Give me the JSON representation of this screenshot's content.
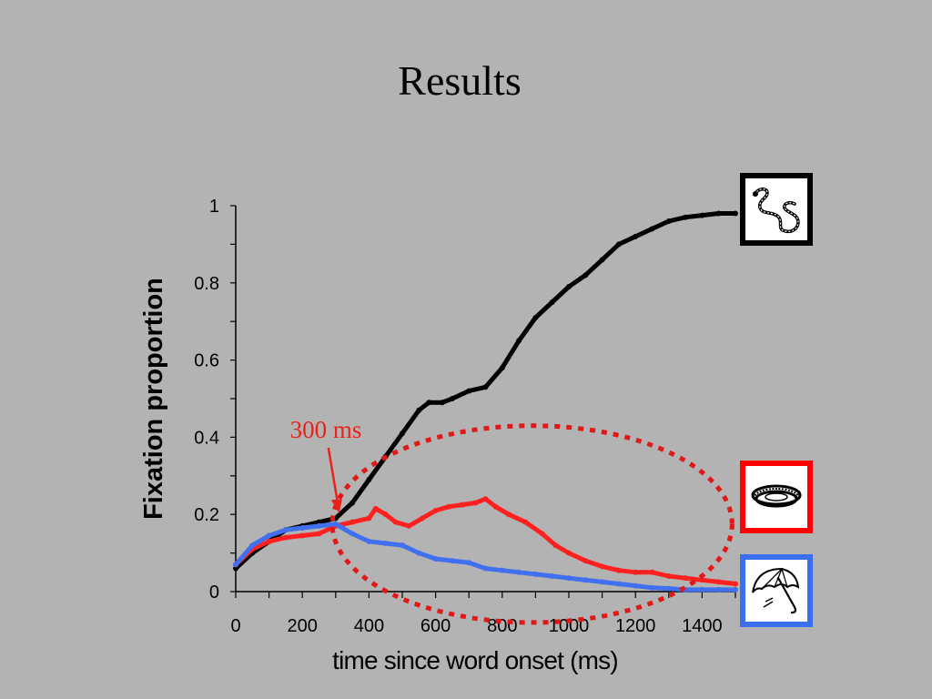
{
  "slide": {
    "title": "Results"
  },
  "colors": {
    "background": "#b3b3b3",
    "target": "#000000",
    "competitor": "#ff2020",
    "distractor": "#4070f0",
    "annotation": "#e8241a"
  },
  "legend_icons": [
    {
      "name": "snake-icon",
      "color": "#000000"
    },
    {
      "name": "coiled-rope-icon",
      "color": "#ff0000"
    },
    {
      "name": "umbrella-icon",
      "color": "#3a6ff0"
    }
  ],
  "chart_data": {
    "type": "line",
    "title": "",
    "xlabel": "time since word onset (ms)",
    "ylabel": "Fixation proportion",
    "xlim": [
      0,
      1500
    ],
    "ylim": [
      0,
      1
    ],
    "xticks": [
      "0",
      "200",
      "400",
      "600",
      "800",
      "1000",
      "1200",
      "1400"
    ],
    "yticks": [
      "0",
      "0.2",
      "0.4",
      "0.6",
      "0.8",
      "1"
    ],
    "grid": false,
    "annotation": {
      "text": "300 ms",
      "x": 300,
      "y": 0.2
    },
    "highlight_ellipse": {
      "x_range": [
        290,
        1490
      ],
      "y_range": [
        -0.08,
        0.43
      ]
    },
    "series": [
      {
        "icon": "snake-icon",
        "color": "#000000",
        "points": [
          [
            0,
            0.06
          ],
          [
            50,
            0.1
          ],
          [
            100,
            0.13
          ],
          [
            150,
            0.16
          ],
          [
            200,
            0.17
          ],
          [
            250,
            0.18
          ],
          [
            300,
            0.19
          ],
          [
            350,
            0.23
          ],
          [
            400,
            0.29
          ],
          [
            450,
            0.35
          ],
          [
            500,
            0.41
          ],
          [
            550,
            0.47
          ],
          [
            580,
            0.49
          ],
          [
            620,
            0.49
          ],
          [
            650,
            0.5
          ],
          [
            700,
            0.52
          ],
          [
            750,
            0.53
          ],
          [
            800,
            0.58
          ],
          [
            850,
            0.65
          ],
          [
            900,
            0.71
          ],
          [
            950,
            0.75
          ],
          [
            1000,
            0.79
          ],
          [
            1050,
            0.82
          ],
          [
            1100,
            0.86
          ],
          [
            1150,
            0.9
          ],
          [
            1200,
            0.92
          ],
          [
            1250,
            0.94
          ],
          [
            1300,
            0.96
          ],
          [
            1350,
            0.97
          ],
          [
            1400,
            0.975
          ],
          [
            1450,
            0.98
          ],
          [
            1500,
            0.98
          ]
        ]
      },
      {
        "icon": "coiled-rope-icon",
        "color": "#ff2020",
        "points": [
          [
            0,
            0.07
          ],
          [
            50,
            0.11
          ],
          [
            100,
            0.13
          ],
          [
            150,
            0.14
          ],
          [
            200,
            0.145
          ],
          [
            250,
            0.15
          ],
          [
            300,
            0.17
          ],
          [
            350,
            0.18
          ],
          [
            400,
            0.19
          ],
          [
            420,
            0.215
          ],
          [
            450,
            0.2
          ],
          [
            480,
            0.18
          ],
          [
            520,
            0.17
          ],
          [
            560,
            0.19
          ],
          [
            600,
            0.21
          ],
          [
            640,
            0.22
          ],
          [
            680,
            0.225
          ],
          [
            720,
            0.23
          ],
          [
            750,
            0.24
          ],
          [
            780,
            0.22
          ],
          [
            820,
            0.2
          ],
          [
            870,
            0.18
          ],
          [
            920,
            0.15
          ],
          [
            960,
            0.12
          ],
          [
            1000,
            0.1
          ],
          [
            1050,
            0.08
          ],
          [
            1100,
            0.065
          ],
          [
            1150,
            0.055
          ],
          [
            1200,
            0.05
          ],
          [
            1250,
            0.05
          ],
          [
            1300,
            0.04
          ],
          [
            1350,
            0.035
          ],
          [
            1400,
            0.03
          ],
          [
            1450,
            0.025
          ],
          [
            1500,
            0.02
          ]
        ]
      },
      {
        "icon": "umbrella-icon",
        "color": "#4070f0",
        "points": [
          [
            0,
            0.07
          ],
          [
            50,
            0.12
          ],
          [
            100,
            0.145
          ],
          [
            150,
            0.16
          ],
          [
            200,
            0.165
          ],
          [
            250,
            0.17
          ],
          [
            300,
            0.175
          ],
          [
            350,
            0.15
          ],
          [
            400,
            0.13
          ],
          [
            450,
            0.125
          ],
          [
            500,
            0.12
          ],
          [
            550,
            0.1
          ],
          [
            600,
            0.085
          ],
          [
            650,
            0.08
          ],
          [
            700,
            0.075
          ],
          [
            750,
            0.06
          ],
          [
            800,
            0.055
          ],
          [
            850,
            0.05
          ],
          [
            900,
            0.045
          ],
          [
            950,
            0.04
          ],
          [
            1000,
            0.035
          ],
          [
            1050,
            0.03
          ],
          [
            1100,
            0.025
          ],
          [
            1150,
            0.02
          ],
          [
            1200,
            0.015
          ],
          [
            1250,
            0.01
          ],
          [
            1300,
            0.008
          ],
          [
            1350,
            0.005
          ],
          [
            1400,
            0.005
          ],
          [
            1450,
            0.005
          ],
          [
            1500,
            0.005
          ]
        ]
      }
    ]
  }
}
